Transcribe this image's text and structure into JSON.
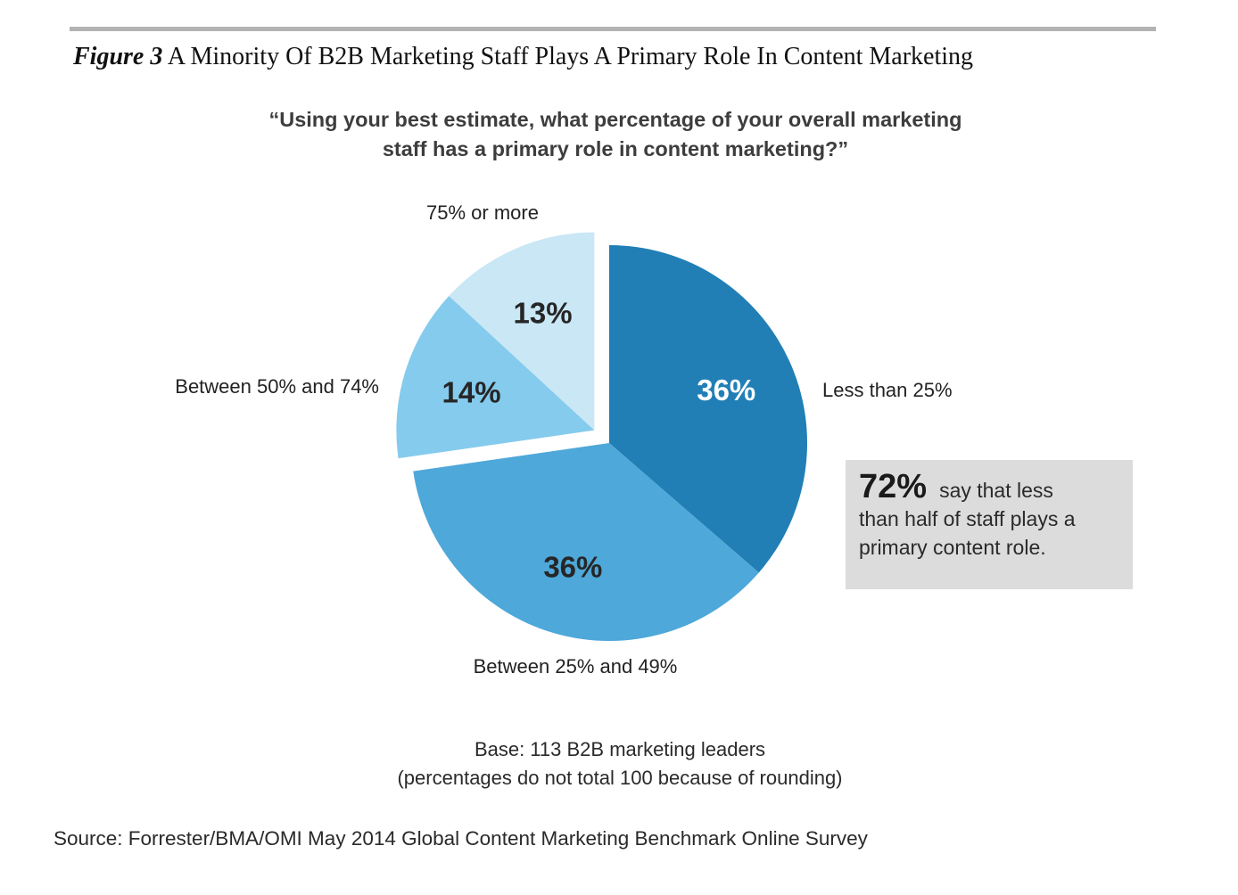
{
  "figure": {
    "label": "Figure 3",
    "title": "A Minority Of B2B Marketing Staff Plays A Primary Role In Content Marketing"
  },
  "question": {
    "line1": "“Using your best estimate, what percentage of your overall marketing",
    "line2": "staff has a primary role in content marketing?”"
  },
  "chart_data": {
    "type": "pie",
    "slices": [
      {
        "label": "Less than 25%",
        "value": 36,
        "value_label": "36%",
        "color": "#217fb6",
        "value_color": "#ffffff"
      },
      {
        "label": "Between 25% and 49%",
        "value": 36,
        "value_label": "36%",
        "color": "#4ea8d9",
        "value_color": "#262626"
      },
      {
        "label": "Between 50% and 74%",
        "value": 14,
        "value_label": "14%",
        "color": "#85cbed",
        "value_color": "#262626",
        "exploded": true
      },
      {
        "label": "75% or more",
        "value": 13,
        "value_label": "13%",
        "color": "#c9e7f5",
        "value_color": "#262626",
        "exploded": true
      }
    ]
  },
  "callout": {
    "big": "72%",
    "line1": "say that less",
    "line2": "than half of staff plays a",
    "line3": "primary content role."
  },
  "base": {
    "line1": "Base: 113 B2B marketing leaders",
    "line2": "(percentages do not total 100 because of rounding)"
  },
  "source": "Source: Forrester/BMA/OMI May 2014 Global Content Marketing Benchmark Online Survey"
}
